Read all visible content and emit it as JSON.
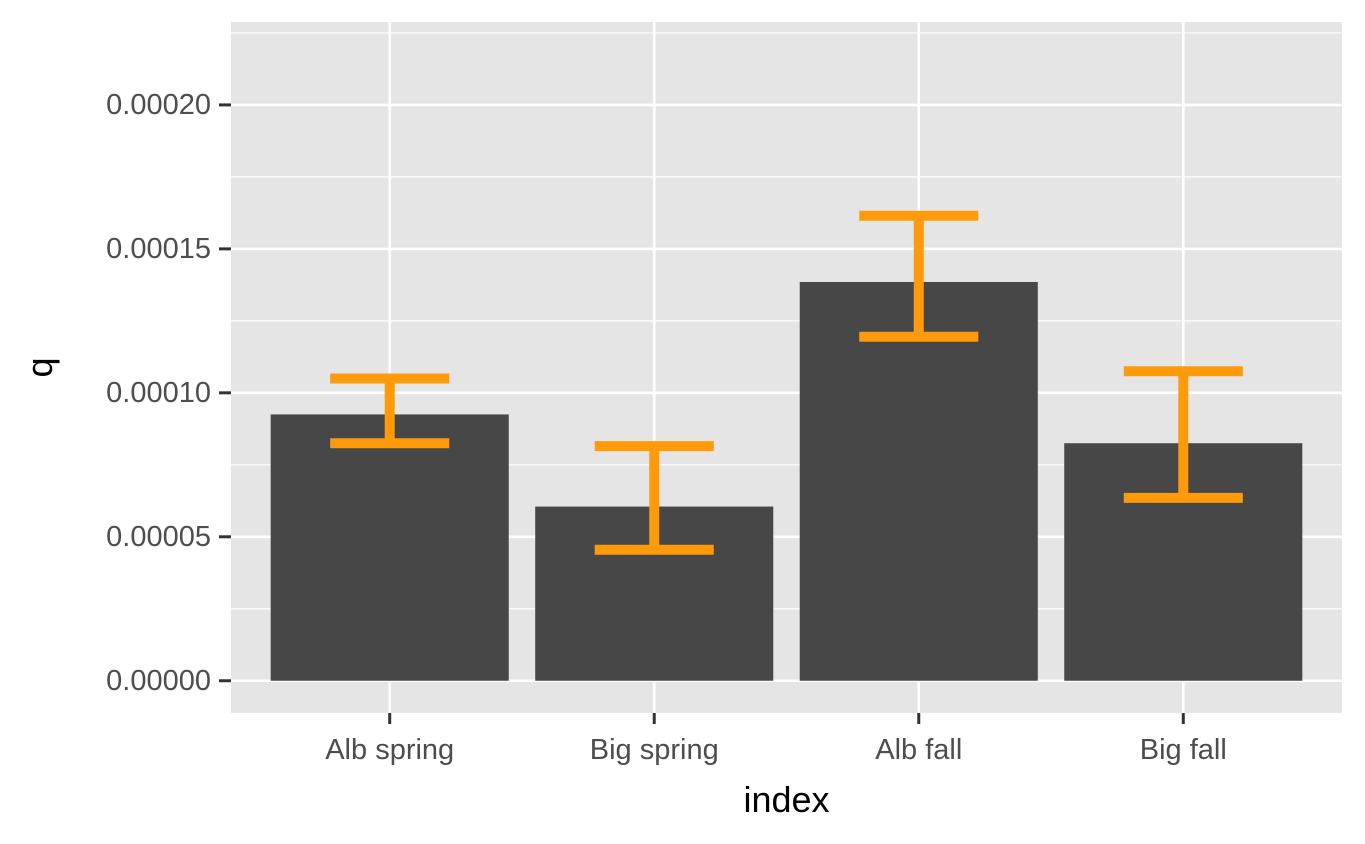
{
  "chart_data": {
    "type": "bar",
    "categories": [
      "Alb spring",
      "Big spring",
      "Alb fall",
      "Big fall"
    ],
    "values": [
      9.25e-05,
      6.05e-05,
      0.0001385,
      8.25e-05
    ],
    "error_bars": [
      {
        "lower": 8.25e-05,
        "upper": 0.000105
      },
      {
        "lower": 4.55e-05,
        "upper": 8.15e-05
      },
      {
        "lower": 0.0001195,
        "upper": 0.0001615
      },
      {
        "lower": 6.35e-05,
        "upper": 0.0001075
      }
    ],
    "xlabel": "index",
    "ylabel": "q",
    "ylim": [
      -1.12e-05,
      0.0002288
    ],
    "yticks": [
      0,
      5e-05,
      0.0001,
      0.00015,
      0.0002
    ],
    "ytick_labels": [
      "0.00000",
      "0.00005",
      "0.00010",
      "0.00015",
      "0.00020"
    ],
    "grid": true,
    "colors": {
      "panel_background": "#e5e5e5",
      "grid_line": "#ffffff",
      "bar_fill": "#474747",
      "error_bar": "#ff9a0a",
      "tick_mark": "#333333",
      "tick_text": "#4d4d4d",
      "axis_title": "#000000"
    }
  }
}
